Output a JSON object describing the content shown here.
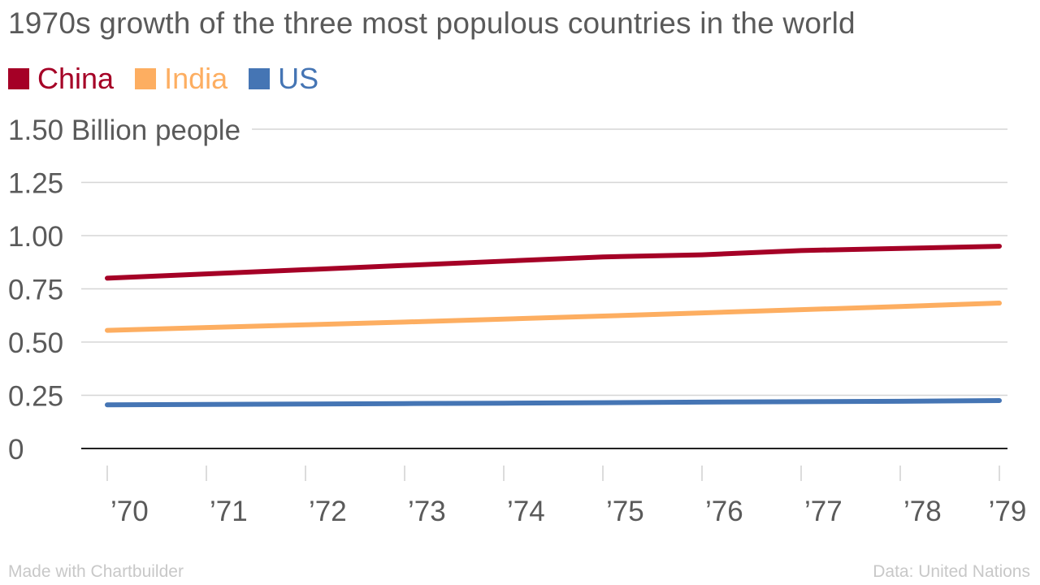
{
  "title": "1970s growth of the three most populous countries in the world",
  "footer": {
    "credit": "Made with Chartbuilder",
    "source": "Data: United Nations"
  },
  "chart_data": {
    "type": "line",
    "title": "1970s growth of the three most populous countries in the world",
    "x": [
      "’70",
      "’71",
      "’72",
      "’73",
      "’74",
      "’75",
      "’76",
      "’77",
      "’78",
      "’79"
    ],
    "ylabel": "",
    "yunit": "Billion people",
    "ylim": [
      0,
      1.5
    ],
    "yticks": [
      {
        "value": 0,
        "label": "0"
      },
      {
        "value": 0.25,
        "label": "0.25"
      },
      {
        "value": 0.5,
        "label": "0.50"
      },
      {
        "value": 0.75,
        "label": "0.75"
      },
      {
        "value": 1.0,
        "label": "1.00"
      },
      {
        "value": 1.25,
        "label": "1.25"
      },
      {
        "value": 1.5,
        "label": "1.50 Billion people"
      }
    ],
    "grid": true,
    "legend_position": "top-left",
    "series": [
      {
        "name": "China",
        "color": "#a50026",
        "values": [
          0.8,
          0.82,
          0.84,
          0.86,
          0.88,
          0.9,
          0.91,
          0.93,
          0.94,
          0.95
        ]
      },
      {
        "name": "India",
        "color": "#fdae61",
        "values": [
          0.555,
          0.568,
          0.581,
          0.594,
          0.608,
          0.622,
          0.637,
          0.652,
          0.667,
          0.683
        ]
      },
      {
        "name": "US",
        "color": "#4575b4",
        "values": [
          0.205,
          0.207,
          0.209,
          0.211,
          0.213,
          0.215,
          0.218,
          0.22,
          0.222,
          0.225
        ]
      }
    ]
  }
}
